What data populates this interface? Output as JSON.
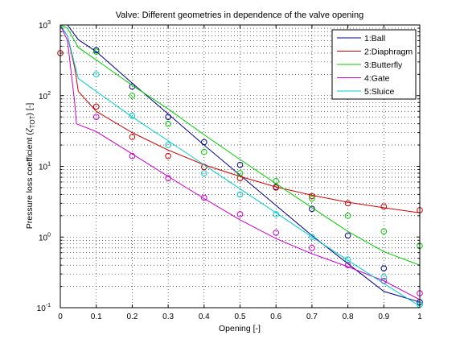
{
  "chart_data": {
    "type": "line",
    "title": "Valve: Different geometries in dependence of the valve opening",
    "xlabel": "Opening [-]",
    "ylabel_prefix": "Pressure loss coefficient (",
    "ylabel_symbol": "ζ",
    "ylabel_subscript": "TOT",
    "ylabel_suffix": ") [-]",
    "xlim": [
      0,
      1
    ],
    "ylim": [
      0.1,
      1000
    ],
    "yscale": "log",
    "grid": true,
    "legend_position": "top-right",
    "x_ticks": [
      0,
      0.1,
      0.2,
      0.3,
      0.4,
      0.5,
      0.6,
      0.7,
      0.8,
      0.9,
      1
    ],
    "x_tick_labels": [
      "0",
      "0.1",
      "0.2",
      "0.3",
      "0.4",
      "0.5",
      "0.6",
      "0.7",
      "0.8",
      "0.9",
      "1"
    ],
    "y_tick_base": "10",
    "y_ticks": [
      0.1,
      1,
      10,
      100,
      1000
    ],
    "y_tick_exponents": [
      "-1",
      "0",
      "1",
      "2",
      "3"
    ],
    "series": [
      {
        "name": "1:Ball",
        "color": "#00008b",
        "line": [
          [
            0,
            1000
          ],
          [
            0.02,
            1000
          ],
          [
            0.05,
            620
          ],
          [
            0.1,
            420
          ],
          [
            0.2,
            150
          ],
          [
            0.3,
            55
          ],
          [
            0.4,
            20
          ],
          [
            0.5,
            7.5
          ],
          [
            0.6,
            2.8
          ],
          [
            0.7,
            1.05
          ],
          [
            0.8,
            0.42
          ],
          [
            0.9,
            0.17
          ],
          [
            1,
            0.12
          ]
        ],
        "markers": [
          [
            0.1,
            440
          ],
          [
            0.2,
            135
          ],
          [
            0.3,
            50
          ],
          [
            0.4,
            22
          ],
          [
            0.5,
            10.5
          ],
          [
            0.6,
            5.1
          ],
          [
            0.7,
            2.5
          ],
          [
            0.8,
            1.05
          ],
          [
            0.9,
            0.36
          ],
          [
            1,
            0.12
          ]
        ]
      },
      {
        "name": "2:Diaphragm",
        "color": "#cc0000",
        "line": [
          [
            0,
            1000
          ],
          [
            0.02,
            700
          ],
          [
            0.04,
            250
          ],
          [
            0.05,
            115
          ],
          [
            0.1,
            60
          ],
          [
            0.2,
            30
          ],
          [
            0.3,
            17
          ],
          [
            0.4,
            10.5
          ],
          [
            0.5,
            7.2
          ],
          [
            0.6,
            5.1
          ],
          [
            0.7,
            3.9
          ],
          [
            0.8,
            3.1
          ],
          [
            0.9,
            2.6
          ],
          [
            1,
            2.2
          ]
        ],
        "markers": [
          [
            0,
            400
          ],
          [
            0.1,
            70
          ],
          [
            0.2,
            26
          ],
          [
            0.3,
            14
          ],
          [
            0.4,
            9.8
          ],
          [
            0.5,
            6.8
          ],
          [
            0.6,
            5.0
          ],
          [
            0.7,
            3.8
          ],
          [
            0.8,
            3.0
          ],
          [
            0.9,
            2.7
          ],
          [
            1,
            2.4
          ]
        ]
      },
      {
        "name": "3:Butterfly",
        "color": "#00cc00",
        "line": [
          [
            0,
            1000
          ],
          [
            0.02,
            900
          ],
          [
            0.05,
            480
          ],
          [
            0.1,
            320
          ],
          [
            0.2,
            140
          ],
          [
            0.3,
            65
          ],
          [
            0.4,
            28
          ],
          [
            0.5,
            12.5
          ],
          [
            0.6,
            5.7
          ],
          [
            0.7,
            2.6
          ],
          [
            0.8,
            1.2
          ],
          [
            0.9,
            0.62
          ],
          [
            1,
            0.4
          ]
        ],
        "markers": [
          [
            0.1,
            420
          ],
          [
            0.2,
            100
          ],
          [
            0.3,
            40
          ],
          [
            0.4,
            16
          ],
          [
            0.5,
            8.0
          ],
          [
            0.6,
            6.2
          ],
          [
            0.7,
            3.5
          ],
          [
            0.8,
            2.0
          ],
          [
            0.9,
            1.2
          ],
          [
            1,
            0.75
          ]
        ]
      },
      {
        "name": "4:Gate",
        "color": "#cc00cc",
        "line": [
          [
            0,
            1000
          ],
          [
            0.02,
            600
          ],
          [
            0.04,
            80
          ],
          [
            0.045,
            40
          ],
          [
            0.1,
            31
          ],
          [
            0.2,
            15
          ],
          [
            0.3,
            7.2
          ],
          [
            0.4,
            3.5
          ],
          [
            0.5,
            1.75
          ],
          [
            0.6,
            0.95
          ],
          [
            0.7,
            0.58
          ],
          [
            0.8,
            0.38
          ],
          [
            0.9,
            0.24
          ],
          [
            1,
            0.13
          ]
        ],
        "markers": [
          [
            0.1,
            50
          ],
          [
            0.2,
            14
          ],
          [
            0.3,
            6.8
          ],
          [
            0.4,
            3.6
          ],
          [
            0.5,
            2.1
          ],
          [
            0.6,
            1.15
          ],
          [
            0.7,
            0.7
          ],
          [
            0.8,
            0.4
          ],
          [
            0.9,
            0.24
          ],
          [
            1,
            0.16
          ]
        ]
      },
      {
        "name": "5:Sluice",
        "color": "#00cccc",
        "line": [
          [
            0,
            1000
          ],
          [
            0.02,
            700
          ],
          [
            0.05,
            175
          ],
          [
            0.1,
            115
          ],
          [
            0.2,
            50
          ],
          [
            0.3,
            23
          ],
          [
            0.4,
            10.5
          ],
          [
            0.5,
            4.8
          ],
          [
            0.6,
            2.2
          ],
          [
            0.7,
            1.0
          ],
          [
            0.8,
            0.47
          ],
          [
            0.9,
            0.22
          ],
          [
            1,
            0.105
          ]
        ],
        "markers": [
          [
            0.1,
            200
          ],
          [
            0.2,
            52
          ],
          [
            0.3,
            20
          ],
          [
            0.4,
            8.0
          ],
          [
            0.5,
            4.0
          ],
          [
            0.6,
            2.1
          ],
          [
            0.7,
            1.0
          ],
          [
            0.8,
            0.48
          ],
          [
            0.9,
            0.27
          ],
          [
            1,
            0.11
          ]
        ]
      }
    ]
  }
}
